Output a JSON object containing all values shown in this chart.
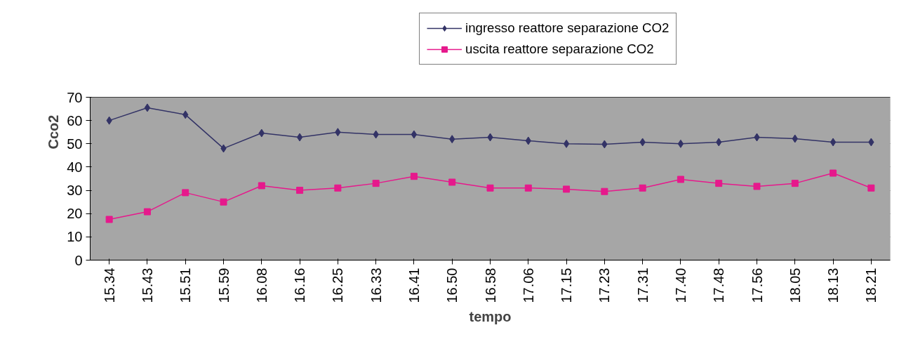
{
  "chart_data": {
    "type": "line",
    "xlabel": "tempo",
    "ylabel": "Cco2",
    "categories": [
      "15.34",
      "15.43",
      "15.51",
      "15.59",
      "16.08",
      "16.16",
      "16.25",
      "16.33",
      "16.41",
      "16.50",
      "16.58",
      "17.06",
      "17.15",
      "17.23",
      "17.31",
      "17.40",
      "17.48",
      "17.56",
      "18.05",
      "18.13",
      "18.21"
    ],
    "series": [
      {
        "name": "ingresso reattore separazione CO2",
        "color": "#333366",
        "marker": "diamond",
        "values": [
          60,
          65.5,
          62.5,
          48,
          54.6,
          52.8,
          55,
          54,
          54,
          52,
          52.8,
          51.3,
          50,
          49.8,
          50.7,
          50,
          50.7,
          52.8,
          52.2,
          50.7,
          50.7
        ]
      },
      {
        "name": "uscita reattore separazione CO2",
        "color": "#e6198c",
        "marker": "square",
        "values": [
          17.5,
          20.8,
          29,
          25,
          32,
          30,
          31,
          33,
          36,
          33.5,
          31,
          31,
          30.5,
          29.5,
          31,
          34.7,
          33,
          31.7,
          33,
          37.4,
          31
        ]
      }
    ],
    "ylim": [
      0,
      70
    ],
    "yticks": [
      0,
      10,
      20,
      30,
      40,
      50,
      60,
      70
    ],
    "grid": "y",
    "legend": "top right",
    "line_style": "solid"
  }
}
